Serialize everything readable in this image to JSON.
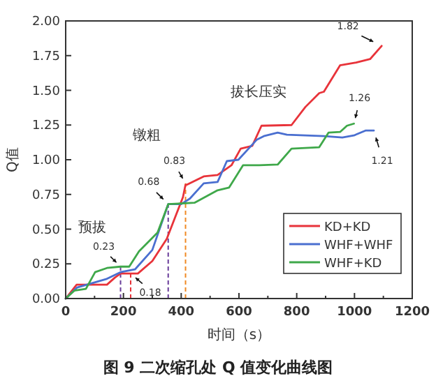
{
  "chart_data": {
    "type": "line",
    "title": "图 9 二次缩孔处 Q 值变化曲线图",
    "xlabel": "时间（s）",
    "ylabel": "Q值",
    "xlim": [
      0,
      1200
    ],
    "xticks": [
      0,
      200,
      400,
      600,
      800,
      1000,
      1200
    ],
    "ylim": [
      0,
      2
    ],
    "yticks": [
      {
        "value": 0,
        "label": "0.00"
      },
      0.25,
      {
        "value": 0.5,
        "label": "0.50"
      },
      0.75,
      {
        "value": 1,
        "label": "1.00"
      },
      1.25,
      {
        "value": 1.5,
        "label": "1.50"
      },
      1.75,
      {
        "value": 2,
        "label": "2.00"
      }
    ],
    "grid": false,
    "legend": "bottom right",
    "marker": "none",
    "line_style": "solid",
    "series": [
      {
        "name": "KD+KD",
        "color": "#e8333a",
        "x": [
          0,
          38,
          143,
          170,
          190,
          250,
          300,
          350,
          406,
          415,
          420,
          478,
          526,
          574,
          606,
          646,
          678,
          782,
          830,
          878,
          894,
          950,
          1006,
          1054,
          1094
        ],
        "values": [
          0,
          0.1,
          0.1,
          0.15,
          0.18,
          0.18,
          0.27,
          0.43,
          0.73,
          0.82,
          0.82,
          0.88,
          0.89,
          0.96,
          1.08,
          1.1,
          1.245,
          1.25,
          1.38,
          1.48,
          1.49,
          1.68,
          1.7,
          1.725,
          1.82
        ]
      },
      {
        "name": "WHF+WHF",
        "color": "#4a6fd0",
        "x": [
          0,
          40,
          140,
          190,
          240,
          300,
          355,
          400,
          430,
          478,
          526,
          558,
          598,
          662,
          686,
          734,
          766,
          894,
          958,
          998,
          1038,
          1067
        ],
        "values": [
          0,
          0.08,
          0.14,
          0.19,
          0.21,
          0.35,
          0.68,
          0.68,
          0.72,
          0.83,
          0.84,
          0.99,
          1.0,
          1.145,
          1.17,
          1.195,
          1.18,
          1.17,
          1.16,
          1.175,
          1.21,
          1.21
        ]
      },
      {
        "name": "WHF+KD",
        "color": "#3fa84a",
        "x": [
          0,
          30,
          70,
          102,
          143,
          190,
          220,
          254,
          318,
          355,
          446,
          526,
          566,
          614,
          670,
          734,
          782,
          830,
          878,
          910,
          950,
          974,
          998
        ],
        "values": [
          0,
          0.057,
          0.07,
          0.19,
          0.22,
          0.23,
          0.23,
          0.34,
          0.475,
          0.68,
          0.69,
          0.78,
          0.8,
          0.96,
          0.96,
          0.965,
          1.08,
          1.085,
          1.09,
          1.195,
          1.2,
          1.245,
          1.26
        ]
      }
    ],
    "ref_lines": [
      {
        "axis": "x",
        "value": 190,
        "color": "#6a3d9a",
        "line_style": "dashed"
      },
      {
        "axis": "x",
        "value": 225,
        "color": "#e8333a",
        "line_style": "dashed"
      },
      {
        "axis": "x",
        "value": 355,
        "color": "#6a3d9a",
        "line_style": "dashed"
      },
      {
        "axis": "x",
        "value": 415,
        "color": "#f08a24",
        "line_style": "dashed"
      }
    ],
    "annotations": [
      "预拔",
      "镦粗",
      "拔长压实",
      {
        "text": "0.23",
        "x": 190,
        "y": 0.23
      },
      {
        "text": "0.18",
        "x": 225,
        "y": 0.18
      },
      {
        "text": "0.68",
        "x": 355,
        "y": 0.68
      },
      {
        "text": "0.83",
        "x": 415,
        "y": 0.83
      },
      {
        "text": "1.82",
        "x": 1094,
        "y": 1.82
      },
      {
        "text": "1.26",
        "x": 998,
        "y": 1.26
      },
      {
        "text": "1.21",
        "x": 1067,
        "y": 1.21
      }
    ]
  }
}
